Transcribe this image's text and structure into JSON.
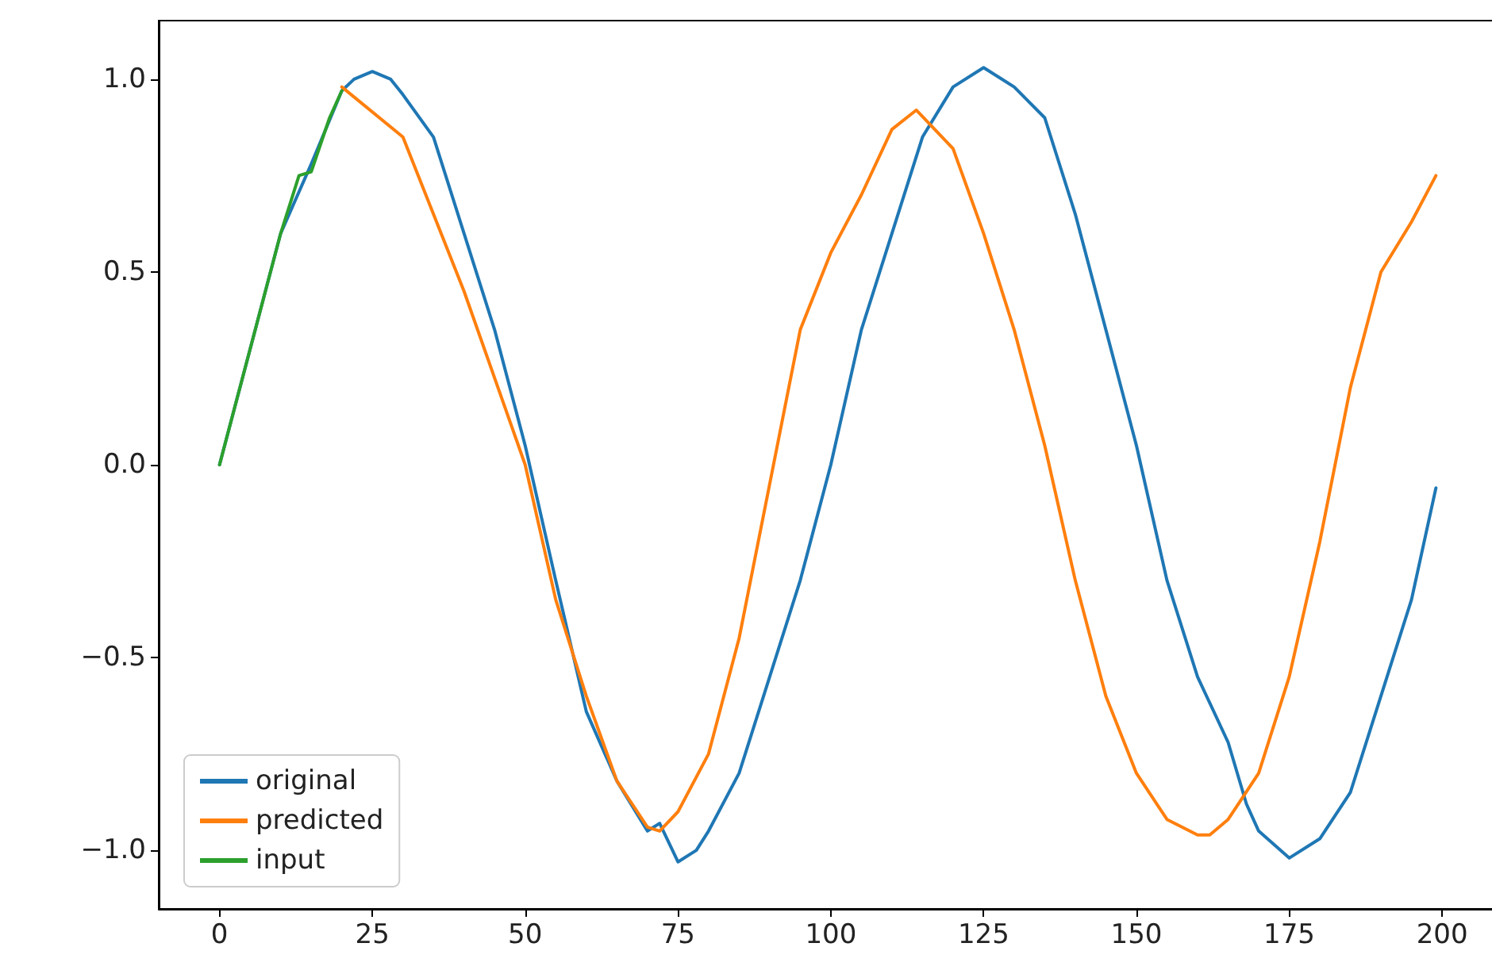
{
  "chart_data": {
    "type": "line",
    "legend": "lower left",
    "grid": false,
    "xlim": [
      -9.95,
      208.95
    ],
    "ylim": [
      -1.152,
      1.152
    ],
    "xticks": [
      0,
      25,
      50,
      75,
      100,
      125,
      150,
      175,
      200
    ],
    "yticks": [
      {
        "value": -1,
        "label": "−1.0"
      },
      {
        "value": -0.5,
        "label": "−0.5"
      },
      {
        "value": 0,
        "label": "0.0"
      },
      {
        "value": 0.5,
        "label": "0.5"
      },
      {
        "value": 1,
        "label": "1.0"
      }
    ],
    "series": [
      {
        "name": "original",
        "color": "#1f77b4",
        "x": [
          0,
          5,
          10,
          15,
          20,
          22,
          25,
          28,
          30,
          35,
          40,
          45,
          50,
          55,
          60,
          65,
          70,
          72,
          75,
          78,
          80,
          85,
          90,
          95,
          100,
          105,
          110,
          115,
          120,
          125,
          130,
          135,
          140,
          145,
          150,
          155,
          160,
          165,
          168,
          170,
          175,
          180,
          185,
          190,
          195,
          199
        ],
        "values": [
          0,
          0.3,
          0.6,
          0.78,
          0.97,
          1.0,
          1.02,
          1.0,
          0.96,
          0.85,
          0.6,
          0.35,
          0.05,
          -0.3,
          -0.64,
          -0.82,
          -0.95,
          -0.93,
          -1.03,
          -1.0,
          -0.95,
          -0.8,
          -0.55,
          -0.3,
          0.0,
          0.35,
          0.6,
          0.85,
          0.98,
          1.03,
          0.98,
          0.9,
          0.65,
          0.35,
          0.05,
          -0.3,
          -0.55,
          -0.72,
          -0.88,
          -0.95,
          -1.02,
          -0.97,
          -0.85,
          -0.6,
          -0.35,
          -0.06
        ]
      },
      {
        "name": "predicted",
        "color": "#ff7f0e",
        "x": [
          20,
          30,
          40,
          50,
          55,
          60,
          65,
          70,
          72,
          75,
          80,
          85,
          90,
          95,
          100,
          105,
          110,
          114,
          120,
          125,
          130,
          135,
          140,
          145,
          150,
          155,
          160,
          162,
          165,
          170,
          175,
          180,
          185,
          190,
          195,
          199
        ],
        "values": [
          0.98,
          0.85,
          0.45,
          0.0,
          -0.35,
          -0.6,
          -0.82,
          -0.94,
          -0.95,
          -0.9,
          -0.75,
          -0.45,
          -0.05,
          0.35,
          0.55,
          0.7,
          0.87,
          0.92,
          0.82,
          0.6,
          0.35,
          0.05,
          -0.3,
          -0.6,
          -0.8,
          -0.92,
          -0.96,
          -0.96,
          -0.92,
          -0.8,
          -0.55,
          -0.2,
          0.2,
          0.5,
          0.63,
          0.75
        ]
      },
      {
        "name": "input",
        "color": "#2ca02c",
        "x": [
          0,
          5,
          10,
          13,
          15,
          18,
          20
        ],
        "values": [
          0,
          0.3,
          0.6,
          0.75,
          0.76,
          0.9,
          0.97
        ]
      }
    ]
  }
}
